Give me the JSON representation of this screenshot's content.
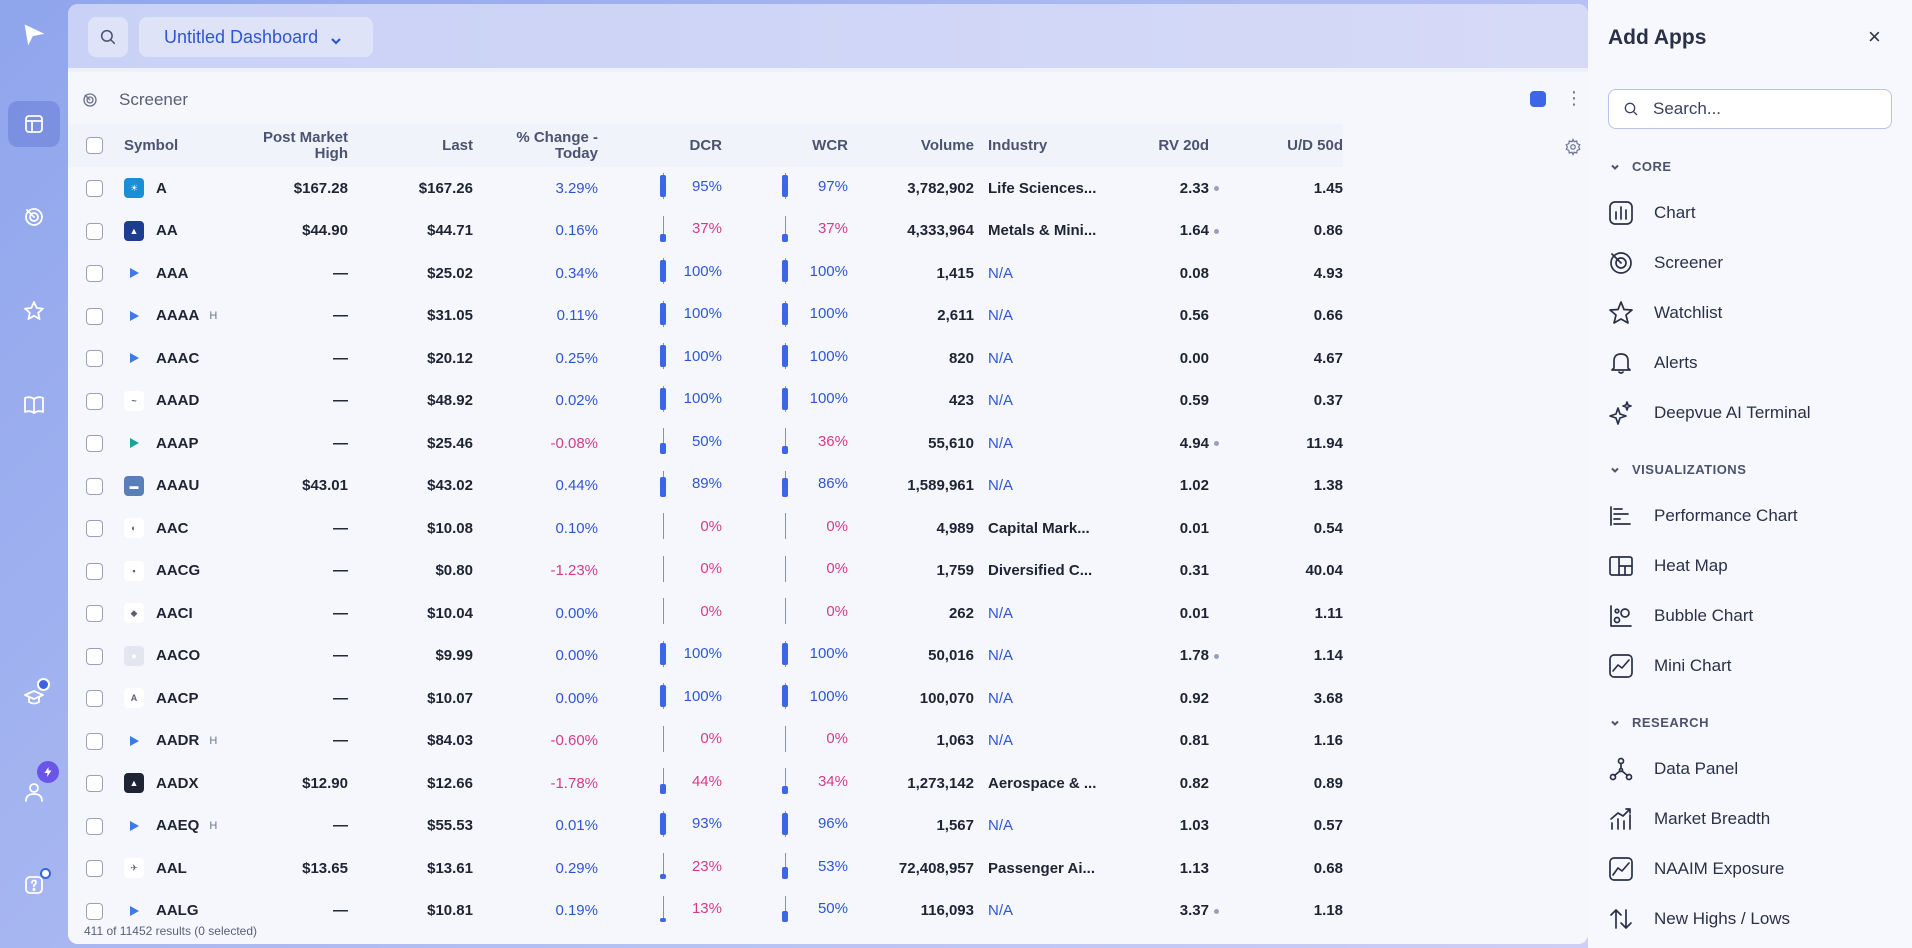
{
  "toolbar": {
    "dashboard_name": "Untitled Dashboard"
  },
  "widget": {
    "title": "Screener",
    "results_text": "411 of 11452 results (0 selected)"
  },
  "columns": {
    "symbol": "Symbol",
    "post_market_high_1": "Post Market",
    "post_market_high_2": "High",
    "last": "Last",
    "change_1": "% Change -",
    "change_2": "Today",
    "dcr": "DCR",
    "wcr": "WCR",
    "volume": "Volume",
    "industry": "Industry",
    "rv20d": "RV 20d",
    "ud50d": "U/D 50d"
  },
  "rows": [
    {
      "symbol": "A",
      "h": "",
      "pmh": "$167.28",
      "last": "$167.26",
      "chg": "3.29%",
      "chg_neg": false,
      "dcr": "95%",
      "dcr_val": 95,
      "wcr": "97%",
      "wcr_val": 97,
      "vol": "3,782,902",
      "ind": "Life Sciences...",
      "ind_na": false,
      "rv": "2.33",
      "rv_dot": true,
      "ud": "1.45"
    },
    {
      "symbol": "AA",
      "h": "",
      "pmh": "$44.90",
      "last": "$44.71",
      "chg": "0.16%",
      "chg_neg": false,
      "dcr": "37%",
      "dcr_val": 37,
      "wcr": "37%",
      "wcr_val": 37,
      "vol": "4,333,964",
      "ind": "Metals & Mini...",
      "ind_na": false,
      "rv": "1.64",
      "rv_dot": true,
      "ud": "0.86"
    },
    {
      "symbol": "AAA",
      "h": "",
      "pmh": "—",
      "last": "$25.02",
      "chg": "0.34%",
      "chg_neg": false,
      "dcr": "100%",
      "dcr_val": 100,
      "wcr": "100%",
      "wcr_val": 100,
      "vol": "1,415",
      "ind": "N/A",
      "ind_na": true,
      "rv": "0.08",
      "rv_dot": false,
      "ud": "4.93"
    },
    {
      "symbol": "AAAA",
      "h": "H",
      "pmh": "—",
      "last": "$31.05",
      "chg": "0.11%",
      "chg_neg": false,
      "dcr": "100%",
      "dcr_val": 100,
      "wcr": "100%",
      "wcr_val": 100,
      "vol": "2,611",
      "ind": "N/A",
      "ind_na": true,
      "rv": "0.56",
      "rv_dot": false,
      "ud": "0.66"
    },
    {
      "symbol": "AAAC",
      "h": "",
      "pmh": "—",
      "last": "$20.12",
      "chg": "0.25%",
      "chg_neg": false,
      "dcr": "100%",
      "dcr_val": 100,
      "wcr": "100%",
      "wcr_val": 100,
      "vol": "820",
      "ind": "N/A",
      "ind_na": true,
      "rv": "0.00",
      "rv_dot": false,
      "ud": "4.67"
    },
    {
      "symbol": "AAAD",
      "h": "",
      "pmh": "—",
      "last": "$48.92",
      "chg": "0.02%",
      "chg_neg": false,
      "dcr": "100%",
      "dcr_val": 100,
      "wcr": "100%",
      "wcr_val": 100,
      "vol": "423",
      "ind": "N/A",
      "ind_na": true,
      "rv": "0.59",
      "rv_dot": false,
      "ud": "0.37"
    },
    {
      "symbol": "AAAP",
      "h": "",
      "pmh": "—",
      "last": "$25.46",
      "chg": "-0.08%",
      "chg_neg": true,
      "dcr": "50%",
      "dcr_val": 50,
      "wcr": "36%",
      "wcr_val": 36,
      "vol": "55,610",
      "ind": "N/A",
      "ind_na": true,
      "rv": "4.94",
      "rv_dot": true,
      "ud": "11.94"
    },
    {
      "symbol": "AAAU",
      "h": "",
      "pmh": "$43.01",
      "last": "$43.02",
      "chg": "0.44%",
      "chg_neg": false,
      "dcr": "89%",
      "dcr_val": 89,
      "wcr": "86%",
      "wcr_val": 86,
      "vol": "1,589,961",
      "ind": "N/A",
      "ind_na": true,
      "rv": "1.02",
      "rv_dot": false,
      "ud": "1.38"
    },
    {
      "symbol": "AAC",
      "h": "",
      "pmh": "—",
      "last": "$10.08",
      "chg": "0.10%",
      "chg_neg": false,
      "dcr": "0%",
      "dcr_val": 0,
      "wcr": "0%",
      "wcr_val": 0,
      "vol": "4,989",
      "ind": "Capital Mark...",
      "ind_na": false,
      "rv": "0.01",
      "rv_dot": false,
      "ud": "0.54"
    },
    {
      "symbol": "AACG",
      "h": "",
      "pmh": "—",
      "last": "$0.80",
      "chg": "-1.23%",
      "chg_neg": true,
      "dcr": "0%",
      "dcr_val": 0,
      "wcr": "0%",
      "wcr_val": 0,
      "vol": "1,759",
      "ind": "Diversified C...",
      "ind_na": false,
      "rv": "0.31",
      "rv_dot": false,
      "ud": "40.04"
    },
    {
      "symbol": "AACI",
      "h": "",
      "pmh": "—",
      "last": "$10.04",
      "chg": "0.00%",
      "chg_neg": false,
      "dcr": "0%",
      "dcr_val": 0,
      "wcr": "0%",
      "wcr_val": 0,
      "vol": "262",
      "ind": "N/A",
      "ind_na": true,
      "rv": "0.01",
      "rv_dot": false,
      "ud": "1.11"
    },
    {
      "symbol": "AACO",
      "h": "",
      "pmh": "—",
      "last": "$9.99",
      "chg": "0.00%",
      "chg_neg": false,
      "dcr": "100%",
      "dcr_val": 100,
      "wcr": "100%",
      "wcr_val": 100,
      "vol": "50,016",
      "ind": "N/A",
      "ind_na": true,
      "rv": "1.78",
      "rv_dot": true,
      "ud": "1.14"
    },
    {
      "symbol": "AACP",
      "h": "",
      "pmh": "—",
      "last": "$10.07",
      "chg": "0.00%",
      "chg_neg": false,
      "dcr": "100%",
      "dcr_val": 100,
      "wcr": "100%",
      "wcr_val": 100,
      "vol": "100,070",
      "ind": "N/A",
      "ind_na": true,
      "rv": "0.92",
      "rv_dot": false,
      "ud": "3.68"
    },
    {
      "symbol": "AADR",
      "h": "H",
      "pmh": "—",
      "last": "$84.03",
      "chg": "-0.60%",
      "chg_neg": true,
      "dcr": "0%",
      "dcr_val": 0,
      "wcr": "0%",
      "wcr_val": 0,
      "vol": "1,063",
      "ind": "N/A",
      "ind_na": true,
      "rv": "0.81",
      "rv_dot": false,
      "ud": "1.16"
    },
    {
      "symbol": "AADX",
      "h": "",
      "pmh": "$12.90",
      "last": "$12.66",
      "chg": "-1.78%",
      "chg_neg": true,
      "dcr": "44%",
      "dcr_val": 44,
      "wcr": "34%",
      "wcr_val": 34,
      "vol": "1,273,142",
      "ind": "Aerospace & ...",
      "ind_na": false,
      "rv": "0.82",
      "rv_dot": false,
      "ud": "0.89"
    },
    {
      "symbol": "AAEQ",
      "h": "H",
      "pmh": "—",
      "last": "$55.53",
      "chg": "0.01%",
      "chg_neg": false,
      "dcr": "93%",
      "dcr_val": 93,
      "wcr": "96%",
      "wcr_val": 96,
      "vol": "1,567",
      "ind": "N/A",
      "ind_na": true,
      "rv": "1.03",
      "rv_dot": false,
      "ud": "0.57"
    },
    {
      "symbol": "AAL",
      "h": "",
      "pmh": "$13.65",
      "last": "$13.61",
      "chg": "0.29%",
      "chg_neg": false,
      "dcr": "23%",
      "dcr_val": 23,
      "wcr": "53%",
      "wcr_val": 53,
      "vol": "72,408,957",
      "ind": "Passenger Ai...",
      "ind_na": false,
      "rv": "1.13",
      "rv_dot": false,
      "ud": "0.68"
    },
    {
      "symbol": "AALG",
      "h": "",
      "pmh": "—",
      "last": "$10.81",
      "chg": "0.19%",
      "chg_neg": false,
      "dcr": "13%",
      "dcr_val": 13,
      "wcr": "50%",
      "wcr_val": 50,
      "vol": "116,093",
      "ind": "N/A",
      "ind_na": true,
      "rv": "3.37",
      "rv_dot": true,
      "ud": "1.18"
    }
  ],
  "apps_panel": {
    "title": "Add Apps",
    "close": "×",
    "search_placeholder": "Search...",
    "sections": {
      "core": "CORE",
      "visualizations": "VISUALIZATIONS",
      "research": "RESEARCH"
    },
    "core_items": [
      "Chart",
      "Screener",
      "Watchlist",
      "Alerts",
      "Deepvue AI Terminal"
    ],
    "viz_items": [
      "Performance Chart",
      "Heat Map",
      "Bubble Chart",
      "Mini Chart"
    ],
    "research_items": [
      "Data Panel",
      "Market Breadth",
      "NAAIM Exposure",
      "New Highs / Lows"
    ]
  },
  "colors": {
    "accent": "#2f55d4",
    "negative": "#d43b8a",
    "candle": "#3b66e6"
  }
}
